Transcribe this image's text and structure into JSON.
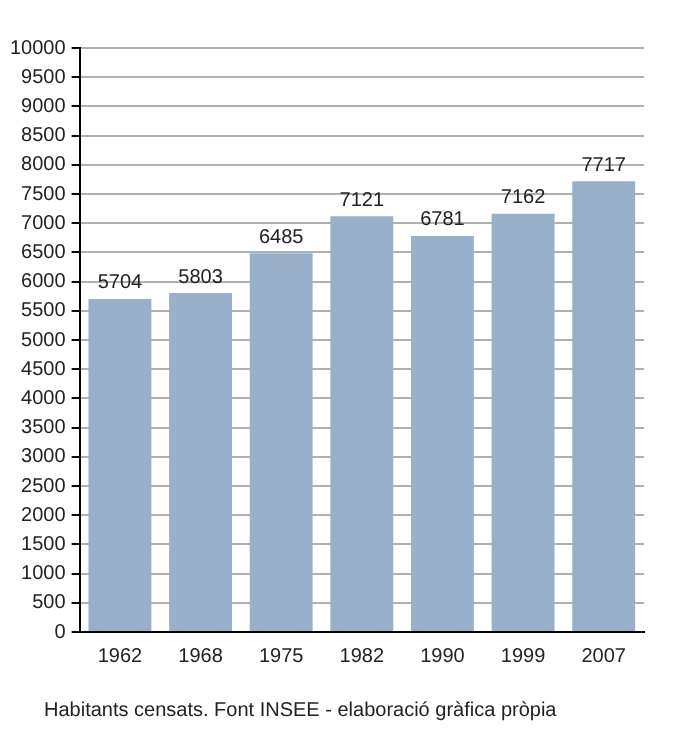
{
  "chart_data": {
    "type": "bar",
    "categories": [
      "1962",
      "1968",
      "1975",
      "1982",
      "1990",
      "1999",
      "2007"
    ],
    "values": [
      5704,
      5803,
      6485,
      7121,
      6781,
      7162,
      7717
    ],
    "color": "#98b0c9",
    "ylim": [
      0,
      10000
    ],
    "yticks": [
      0,
      500,
      1000,
      1500,
      2000,
      2500,
      3000,
      3500,
      4000,
      4500,
      5000,
      5500,
      6000,
      6500,
      7000,
      7500,
      8000,
      8500,
      9000,
      9500,
      10000
    ],
    "grid": "y",
    "data_labels": true,
    "annotations": [
      "Habitants censats. Font INSEE - elaboració gràfica pròpia"
    ]
  }
}
